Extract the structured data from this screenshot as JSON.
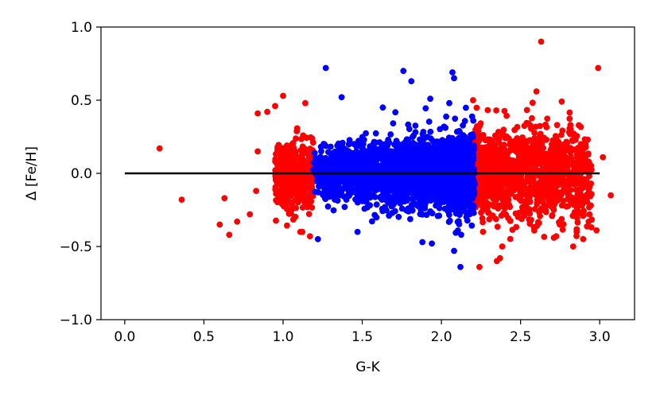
{
  "chart_data": {
    "type": "scatter",
    "title": "",
    "xlabel": "G-K",
    "ylabel": "Δ [Fe/H]",
    "xlim": [
      -0.15,
      3.22
    ],
    "ylim": [
      -1.0,
      1.0
    ],
    "grid": false,
    "x_ticks": [
      "0.0",
      "0.5",
      "1.0",
      "1.5",
      "2.0",
      "2.5",
      "3.0"
    ],
    "y_ticks": [
      "−1.0",
      "−0.5",
      "0.0",
      "0.5",
      "1.0"
    ],
    "colors": {
      "outer": "#ff0000",
      "inner": "#0000ff",
      "reference_line": "#000000"
    },
    "reference_line": {
      "x": [
        0.0,
        3.0
      ],
      "y": [
        0.0,
        0.0
      ]
    },
    "series": [
      {
        "color": "red",
        "x_range": [
          0.22,
          3.07
        ],
        "note_points": [
          [
            0.22,
            0.17
          ],
          [
            0.36,
            -0.18
          ],
          [
            0.6,
            -0.35
          ],
          [
            0.66,
            -0.42
          ],
          [
            0.63,
            -0.17
          ],
          [
            0.71,
            -0.33
          ],
          [
            0.79,
            -0.28
          ],
          [
            0.83,
            -0.12
          ],
          [
            0.84,
            0.15
          ],
          [
            0.84,
            0.41
          ],
          [
            0.9,
            0.42
          ],
          [
            0.95,
            0.46
          ],
          [
            1.0,
            0.53
          ],
          [
            1.17,
            -0.43
          ],
          [
            1.14,
            0.48
          ],
          [
            2.2,
            0.5
          ],
          [
            2.35,
            -0.6
          ],
          [
            2.37,
            -0.58
          ],
          [
            2.24,
            -0.64
          ],
          [
            2.63,
            0.9
          ],
          [
            2.6,
            0.56
          ],
          [
            2.76,
            0.49
          ],
          [
            2.99,
            0.72
          ],
          [
            3.07,
            -0.15
          ],
          [
            2.98,
            -0.39
          ],
          [
            3.02,
            0.11
          ],
          [
            2.9,
            0.2
          ],
          [
            2.85,
            -0.2
          ],
          [
            2.71,
            -0.44
          ],
          [
            2.92,
            0.01
          ]
        ]
      },
      {
        "color": "blue",
        "x_range": [
          1.19,
          2.21
        ],
        "note_points": [
          [
            1.27,
            0.72
          ],
          [
            1.76,
            0.7
          ],
          [
            1.81,
            0.63
          ],
          [
            2.07,
            0.69
          ],
          [
            2.08,
            0.65
          ],
          [
            1.22,
            -0.45
          ],
          [
            1.47,
            -0.4
          ],
          [
            1.88,
            -0.47
          ],
          [
            1.94,
            -0.48
          ],
          [
            2.08,
            -0.53
          ],
          [
            2.12,
            -0.64
          ],
          [
            1.37,
            0.52
          ],
          [
            1.63,
            0.45
          ],
          [
            1.93,
            0.51
          ],
          [
            2.05,
            0.48
          ]
        ]
      }
    ]
  }
}
